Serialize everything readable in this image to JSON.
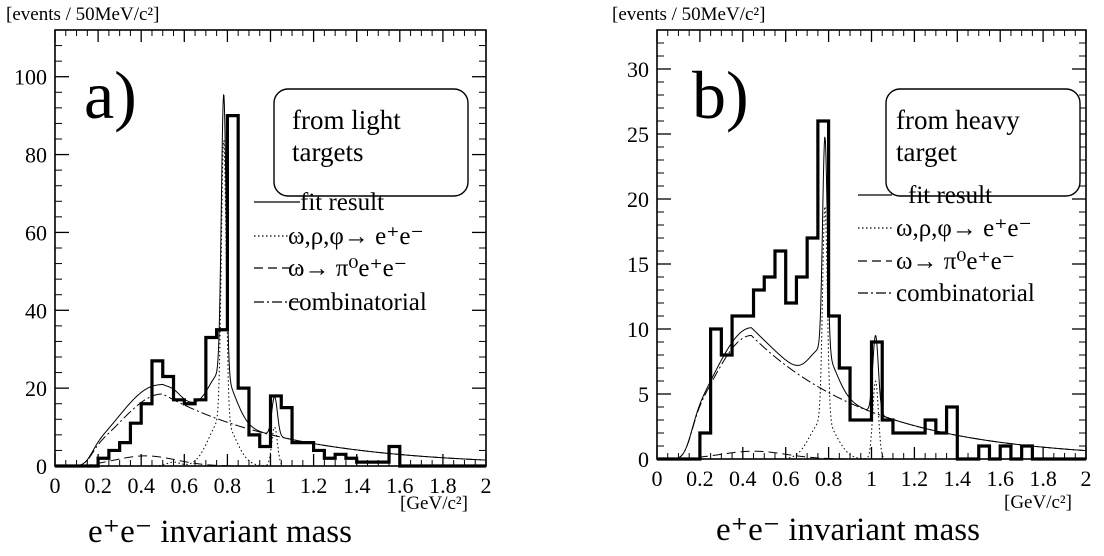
{
  "chart_data": [
    {
      "id": "a",
      "type": "histogram",
      "panel_label": "a)",
      "inset_text": [
        "from light",
        "targets"
      ],
      "ylabel": "[events / 50MeV/c²]",
      "xunit": "[GeV/c²]",
      "xlabel": "e⁺e⁻  invariant mass",
      "xlim": [
        0,
        2
      ],
      "ylim": [
        0,
        112
      ],
      "x_ticks": [
        0,
        0.2,
        0.4,
        0.6,
        0.8,
        1,
        1.2,
        1.4,
        1.6,
        1.8,
        2
      ],
      "x_tick_labels": [
        "0",
        "0.2",
        "0.4",
        "0.6",
        "0.8",
        "1",
        "1.2",
        "1.4",
        "1.6",
        "1.8",
        "2"
      ],
      "y_ticks": [
        0,
        20,
        40,
        60,
        80,
        100
      ],
      "y_tick_labels": [
        "0",
        "20",
        "40",
        "60",
        "80",
        "100"
      ],
      "bin_width": 0.05,
      "bin_edges_start": 0,
      "histogram": [
        0,
        0,
        0,
        0,
        2,
        4,
        6,
        11,
        16,
        27,
        23,
        17,
        16,
        17,
        33,
        35,
        90,
        20,
        8,
        5,
        18,
        15,
        6,
        6,
        4,
        2,
        3,
        2,
        1,
        1,
        1,
        5,
        0,
        0,
        0,
        0,
        0,
        0,
        0,
        0
      ],
      "legend": [
        {
          "label": "fit result",
          "style": "solid"
        },
        {
          "label": "ω,ρ,φ→ e⁺e⁻",
          "style": "dotted"
        },
        {
          "label": "ω→ π⁰e⁺e⁻",
          "style": "dashed"
        },
        {
          "label": "combinatorial",
          "style": "dashdot"
        }
      ],
      "curves": {
        "combinatorial": {
          "amp": 18.5,
          "mu": 0.5,
          "sigma": 0.2,
          "tail": 0.6,
          "onset": 0.16,
          "rise": 0.03
        },
        "dalitz": {
          "amp": 2.6,
          "mu": 0.42,
          "sigma": 0.14,
          "onset": 0.16,
          "rise": 0.03
        },
        "resonances": [
          {
            "mass": 0.55,
            "amp": 1.0,
            "width": 0.03
          },
          {
            "mass": 0.775,
            "amp": 12.0,
            "width": 0.06
          },
          {
            "mass": 0.783,
            "amp": 72.0,
            "width": 0.011
          },
          {
            "mass": 1.019,
            "amp": 10.0,
            "width": 0.013
          }
        ]
      }
    },
    {
      "id": "b",
      "type": "histogram",
      "panel_label": "b)",
      "inset_text": [
        "from heavy",
        "target"
      ],
      "ylabel": "[events / 50MeV/c²]",
      "xunit": "[GeV/c²]",
      "xlabel": "e⁺e⁻  invariant mass",
      "xlim": [
        0,
        2
      ],
      "ylim": [
        0,
        33
      ],
      "x_ticks": [
        0,
        0.2,
        0.4,
        0.6,
        0.8,
        1,
        1.2,
        1.4,
        1.6,
        1.8,
        2
      ],
      "x_tick_labels": [
        "0",
        "0.2",
        "0.4",
        "0.6",
        "0.8",
        "1",
        "1.2",
        "1.4",
        "1.6",
        "1.8",
        "2"
      ],
      "y_ticks": [
        0,
        5,
        10,
        15,
        20,
        25,
        30
      ],
      "y_tick_labels": [
        "0",
        "5",
        "10",
        "15",
        "20",
        "25",
        "30"
      ],
      "bin_width": 0.05,
      "bin_edges_start": 0,
      "histogram": [
        0,
        0,
        0,
        0,
        2,
        10,
        8,
        11,
        11,
        13,
        14,
        16,
        12,
        14,
        17,
        26,
        11,
        7,
        3,
        3,
        9,
        3,
        2,
        2,
        2,
        3,
        2,
        4,
        0,
        0,
        1,
        0,
        1,
        0,
        1,
        0,
        0,
        0,
        0,
        0
      ],
      "legend": [
        {
          "label": "fit result",
          "style": "solid"
        },
        {
          "label": "ω,ρ,φ→ e⁺e⁻",
          "style": "dotted"
        },
        {
          "label": "ω→ π⁰e⁺e⁻",
          "style": "dashed"
        },
        {
          "label": "combinatorial",
          "style": "dashdot"
        }
      ],
      "curves": {
        "combinatorial": {
          "amp": 9.5,
          "mu": 0.44,
          "sigma": 0.19,
          "tail": 0.58,
          "onset": 0.15,
          "rise": 0.03
        },
        "dalitz": {
          "amp": 0.6,
          "mu": 0.45,
          "sigma": 0.15,
          "onset": 0.15,
          "rise": 0.03
        },
        "resonances": [
          {
            "mass": 0.775,
            "amp": 3.0,
            "width": 0.06
          },
          {
            "mass": 0.783,
            "amp": 16.5,
            "width": 0.011
          },
          {
            "mass": 1.019,
            "amp": 6.0,
            "width": 0.013
          }
        ]
      }
    }
  ]
}
